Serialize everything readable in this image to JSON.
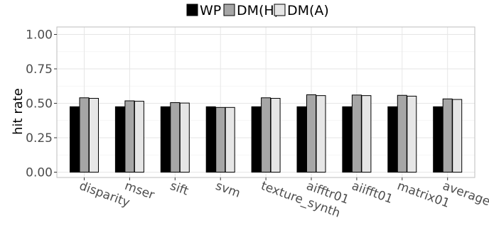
{
  "chart_data": {
    "type": "bar",
    "title": "",
    "xlabel": "",
    "ylabel": "hit rate",
    "ylim": [
      0,
      1
    ],
    "yticks": [
      "0.00",
      "0.25",
      "0.50",
      "0.75",
      "1.00"
    ],
    "ytick_values": [
      0,
      0.25,
      0.5,
      0.75,
      1.0
    ],
    "grid": true,
    "legend_position": "top",
    "categories": [
      "disparity",
      "mser",
      "sift",
      "svm",
      "texture_synth",
      "aifftr01",
      "aiifft01",
      "matrix01",
      "average"
    ],
    "series": [
      {
        "name": "WP",
        "color": "#000000",
        "values": [
          0.475,
          0.475,
          0.475,
          0.475,
          0.475,
          0.475,
          0.475,
          0.475,
          0.475
        ]
      },
      {
        "name": "DM(H)",
        "color": "#a6a6a6",
        "values": [
          0.54,
          0.518,
          0.505,
          0.47,
          0.54,
          0.562,
          0.56,
          0.558,
          0.532
        ]
      },
      {
        "name": "DM(A)",
        "color": "#e6e6e6",
        "values": [
          0.536,
          0.515,
          0.502,
          0.47,
          0.536,
          0.556,
          0.556,
          0.552,
          0.528
        ]
      }
    ]
  }
}
